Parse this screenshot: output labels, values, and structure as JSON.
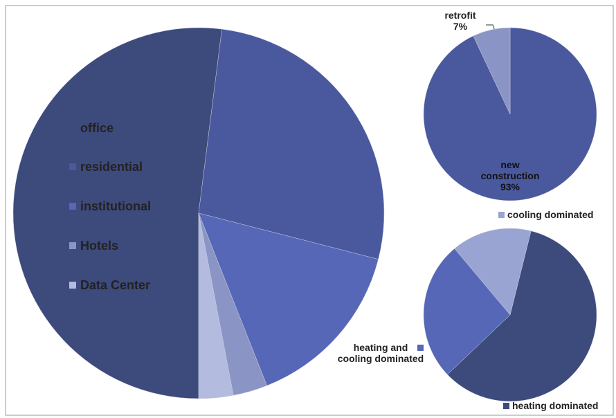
{
  "chart_data": [
    {
      "type": "pie",
      "categories": [
        "office",
        "residential",
        "institutional",
        "Hotels",
        "Data Center"
      ],
      "values": [
        52,
        27,
        15,
        3,
        3
      ],
      "colors": [
        "#3d4a7c",
        "#4a599e",
        "#5567b6",
        "#8a95c6",
        "#b3bbdf"
      ],
      "legend": "left"
    },
    {
      "type": "pie",
      "categories": [
        "new construction",
        "retrofit"
      ],
      "values": [
        93,
        7
      ],
      "value_labels": [
        "93%",
        "7%"
      ],
      "colors": [
        "#4a599e",
        "#8a95c6"
      ]
    },
    {
      "type": "pie",
      "categories": [
        "heating dominated",
        "heating and cooling dominated",
        "cooling dominated"
      ],
      "values": [
        59,
        26,
        15
      ],
      "colors": [
        "#3d4a7c",
        "#5567b6",
        "#9aa4d2"
      ]
    }
  ]
}
